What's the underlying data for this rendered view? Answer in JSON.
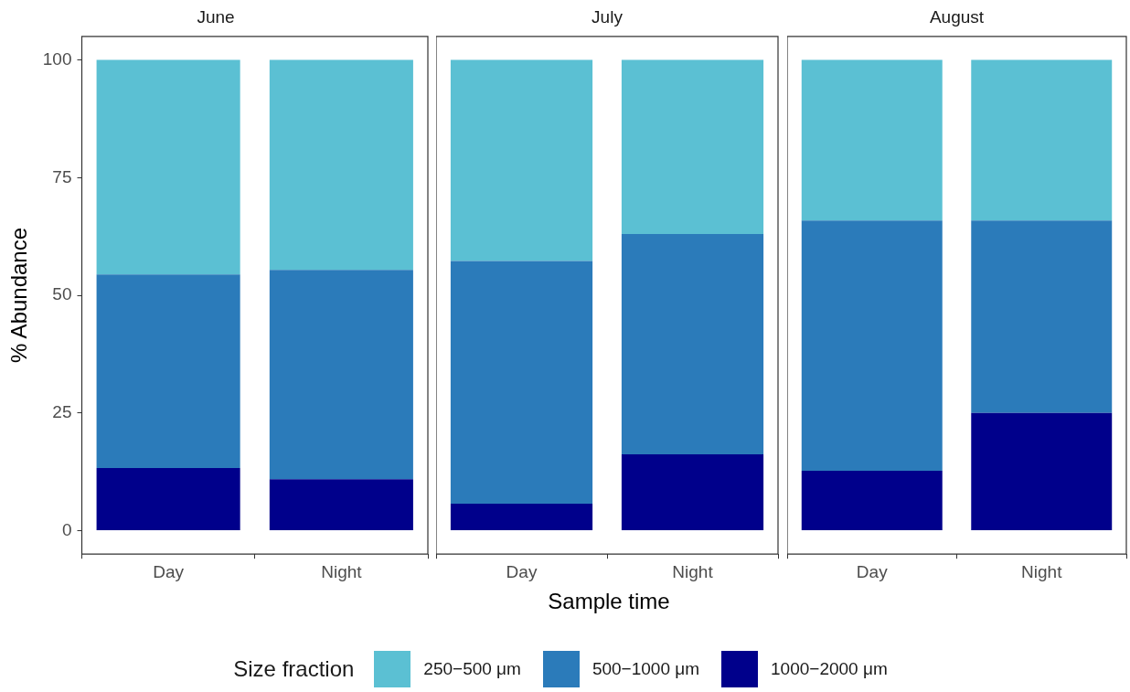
{
  "chart_data": [
    {
      "type": "bar",
      "title": "June",
      "ylabel": "% Abundance",
      "legend_title": "Size fraction",
      "categories": [
        "Day",
        "Night"
      ],
      "stacked": true,
      "ylim": [
        -5,
        105
      ],
      "yticks": [
        0,
        25,
        50,
        75,
        100
      ],
      "legend": "bottom",
      "series": [
        {
          "name": "1000−2000 μm",
          "color": "#00008b",
          "values": [
            13.3,
            10.9
          ]
        },
        {
          "name": "500−1000 μm",
          "color": "#2b7bba",
          "values": [
            41.1,
            44.5
          ]
        },
        {
          "name": "250−500 μm",
          "color": "#5bc0d3",
          "values": [
            45.6,
            44.6
          ]
        }
      ]
    },
    {
      "type": "bar",
      "title": "July",
      "xlabel": "Sample time",
      "categories": [
        "Day",
        "Night"
      ],
      "stacked": true,
      "ylim": [
        -5,
        105
      ],
      "yticks": [
        0,
        25,
        50,
        75,
        100
      ],
      "tick_labels": "x",
      "series": [
        {
          "color": "#00008b",
          "values": [
            5.7,
            16.2
          ]
        },
        {
          "color": "#2b7bba",
          "values": [
            51.6,
            46.8
          ]
        },
        {
          "color": "#5bc0d3",
          "values": [
            42.7,
            37.0
          ]
        }
      ]
    },
    {
      "type": "bar",
      "title": "August",
      "categories": [
        "Day",
        "Night"
      ],
      "stacked": true,
      "ylim": [
        -5,
        105
      ],
      "yticks": [
        0,
        25,
        50,
        75,
        100
      ],
      "tick_labels": "x",
      "series": [
        {
          "color": "#00008b",
          "values": [
            12.7,
            25.0
          ]
        },
        {
          "color": "#2b7bba",
          "values": [
            53.2,
            40.9
          ]
        },
        {
          "color": "#5bc0d3",
          "values": [
            34.1,
            34.1
          ]
        }
      ]
    }
  ]
}
